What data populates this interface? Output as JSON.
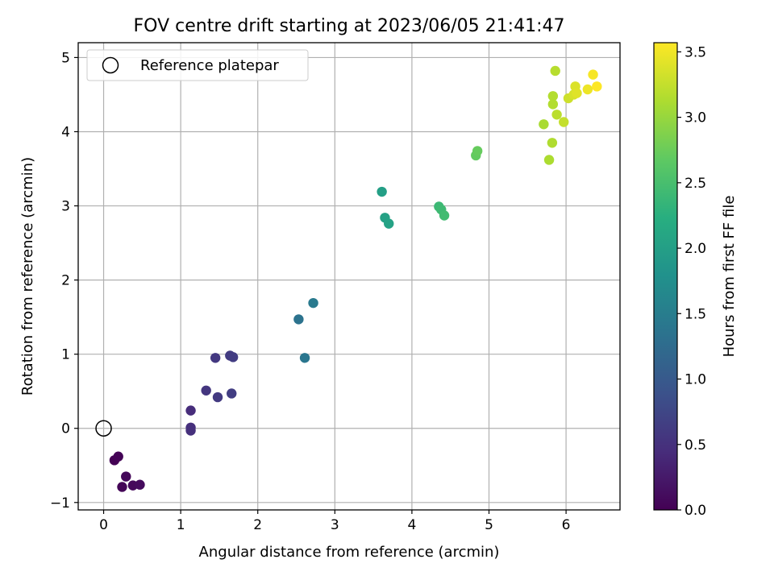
{
  "chart_data": {
    "type": "scatter",
    "title": "FOV centre drift starting at 2023/06/05 21:41:47",
    "xlabel": "Angular distance from reference (arcmin)",
    "ylabel": "Rotation from reference (arcmin)",
    "xlim": [
      -0.33,
      6.7
    ],
    "ylim": [
      -1.1,
      5.2
    ],
    "x_ticks": [
      0,
      1,
      2,
      3,
      4,
      5,
      6
    ],
    "y_ticks": [
      -1,
      0,
      1,
      2,
      3,
      4,
      5
    ],
    "grid": true,
    "legend_position": "top-left",
    "legend_entry": "Reference platepar",
    "reference_point": {
      "x": 0,
      "y": 0
    },
    "colorbar": {
      "label": "Hours from first FF file",
      "colormap": "viridis",
      "range": [
        0,
        3.57
      ],
      "ticks": [
        0.0,
        0.5,
        1.0,
        1.5,
        2.0,
        2.5,
        3.0,
        3.5
      ],
      "tick_labels": [
        "0.0",
        "0.5",
        "1.0",
        "1.5",
        "2.0",
        "2.5",
        "3.0",
        "3.5"
      ]
    },
    "points": [
      {
        "x": 0.14,
        "y": -0.43,
        "hours": 0.0
      },
      {
        "x": 0.19,
        "y": -0.38,
        "hours": 0.02
      },
      {
        "x": 0.24,
        "y": -0.79,
        "hours": 0.04
      },
      {
        "x": 0.29,
        "y": -0.65,
        "hours": 0.06
      },
      {
        "x": 0.38,
        "y": -0.77,
        "hours": 0.08
      },
      {
        "x": 0.47,
        "y": -0.76,
        "hours": 0.1
      },
      {
        "x": 1.13,
        "y": 0.24,
        "hours": 0.45
      },
      {
        "x": 1.13,
        "y": 0.01,
        "hours": 0.47
      },
      {
        "x": 1.13,
        "y": -0.03,
        "hours": 0.48
      },
      {
        "x": 1.33,
        "y": 0.51,
        "hours": 0.55
      },
      {
        "x": 1.45,
        "y": 0.95,
        "hours": 0.58
      },
      {
        "x": 1.48,
        "y": 0.42,
        "hours": 0.6
      },
      {
        "x": 1.64,
        "y": 0.98,
        "hours": 0.62
      },
      {
        "x": 1.68,
        "y": 0.96,
        "hours": 0.63
      },
      {
        "x": 1.66,
        "y": 0.47,
        "hours": 0.64
      },
      {
        "x": 2.53,
        "y": 1.47,
        "hours": 1.35
      },
      {
        "x": 2.61,
        "y": 0.95,
        "hours": 1.4
      },
      {
        "x": 2.72,
        "y": 1.69,
        "hours": 1.45
      },
      {
        "x": 3.61,
        "y": 3.19,
        "hours": 2.0
      },
      {
        "x": 3.65,
        "y": 2.84,
        "hours": 2.03
      },
      {
        "x": 3.7,
        "y": 2.76,
        "hours": 2.05
      },
      {
        "x": 4.35,
        "y": 2.99,
        "hours": 2.4
      },
      {
        "x": 4.38,
        "y": 2.95,
        "hours": 2.42
      },
      {
        "x": 4.42,
        "y": 2.87,
        "hours": 2.45
      },
      {
        "x": 4.83,
        "y": 3.68,
        "hours": 2.7
      },
      {
        "x": 4.85,
        "y": 3.74,
        "hours": 2.72
      },
      {
        "x": 5.71,
        "y": 4.1,
        "hours": 3.1
      },
      {
        "x": 5.78,
        "y": 3.62,
        "hours": 3.12
      },
      {
        "x": 5.82,
        "y": 3.85,
        "hours": 3.14
      },
      {
        "x": 5.83,
        "y": 4.48,
        "hours": 3.16
      },
      {
        "x": 5.83,
        "y": 4.37,
        "hours": 3.15
      },
      {
        "x": 5.86,
        "y": 4.82,
        "hours": 3.18
      },
      {
        "x": 5.88,
        "y": 4.23,
        "hours": 3.2
      },
      {
        "x": 5.97,
        "y": 4.13,
        "hours": 3.25
      },
      {
        "x": 6.03,
        "y": 4.45,
        "hours": 3.3
      },
      {
        "x": 6.1,
        "y": 4.5,
        "hours": 3.35
      },
      {
        "x": 6.12,
        "y": 4.61,
        "hours": 3.38
      },
      {
        "x": 6.14,
        "y": 4.52,
        "hours": 3.4
      },
      {
        "x": 6.28,
        "y": 4.57,
        "hours": 3.48
      },
      {
        "x": 6.35,
        "y": 4.77,
        "hours": 3.53
      },
      {
        "x": 6.4,
        "y": 4.61,
        "hours": 3.57
      }
    ]
  }
}
